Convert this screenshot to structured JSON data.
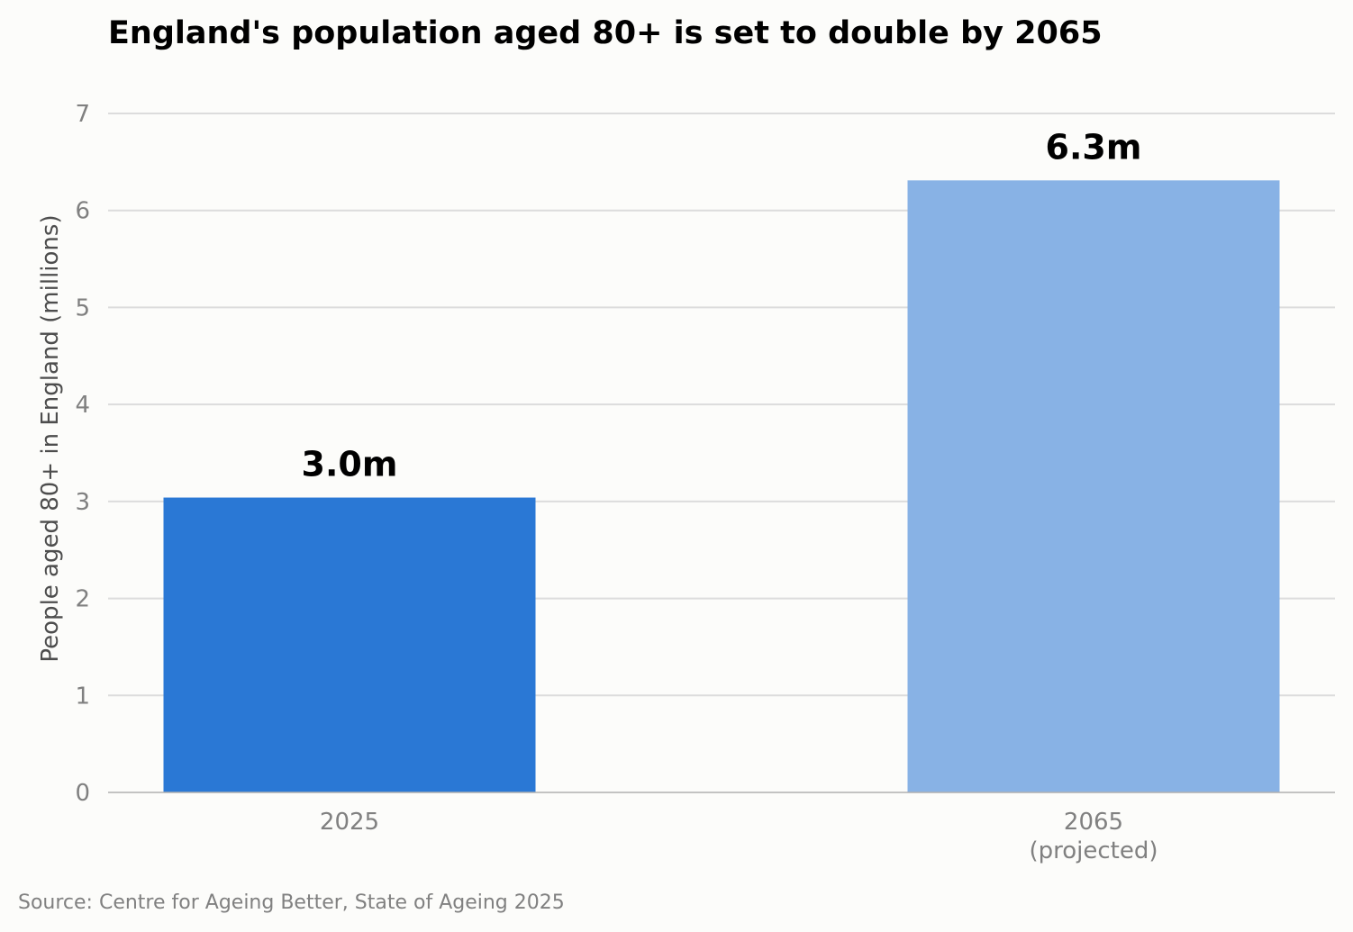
{
  "chart_data": {
    "type": "bar",
    "title": "England's population aged 80+ is set to double by 2065",
    "ylabel": "People aged 80+ in England (millions)",
    "xlabel": "",
    "categories": [
      [
        "2025"
      ],
      [
        "2065",
        "(projected)"
      ]
    ],
    "values": [
      3.04,
      6.31
    ],
    "data_labels": [
      "3.0m",
      "6.3m"
    ],
    "bar_colors": [
      "#2a78d5",
      "#88b2e5"
    ],
    "ylim": [
      0,
      7
    ],
    "yticks": [
      0,
      1,
      2,
      3,
      4,
      5,
      6,
      7
    ],
    "grid": "horizontal",
    "source": "Source: Centre for Ageing Better, State of Ageing 2025"
  }
}
